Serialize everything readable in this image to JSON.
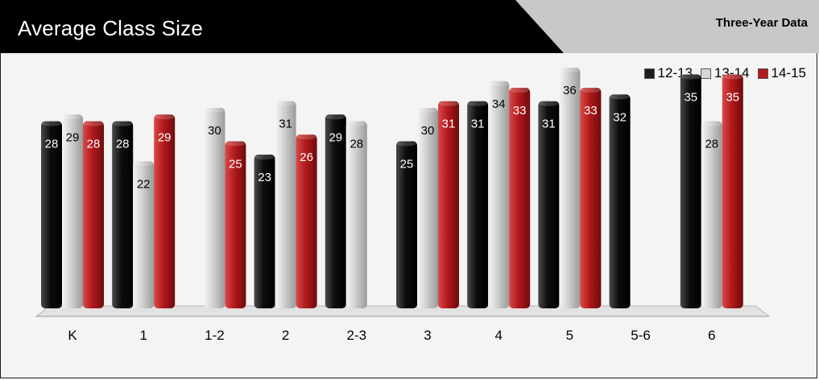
{
  "header": {
    "title": "Average Class Size",
    "subtitle": "Three-Year Data"
  },
  "colors": {
    "12-13": "#1c1c1c",
    "13-14": "#d6d6d6",
    "14-15": "#b3191c"
  },
  "chart_data": {
    "type": "bar",
    "categories": [
      "K",
      "1",
      "1-2",
      "2",
      "2-3",
      "3",
      "4",
      "5",
      "5-6",
      "6"
    ],
    "series": [
      {
        "name": "12-13",
        "values": [
          28,
          28,
          null,
          23,
          29,
          25,
          31,
          31,
          32,
          35
        ]
      },
      {
        "name": "13-14",
        "values": [
          29,
          22,
          30,
          31,
          28,
          30,
          34,
          36,
          null,
          28
        ]
      },
      {
        "name": "14-15",
        "values": [
          28,
          29,
          25,
          26,
          null,
          31,
          33,
          33,
          null,
          35
        ]
      }
    ],
    "legend_position": "top-right",
    "grid": false
  }
}
